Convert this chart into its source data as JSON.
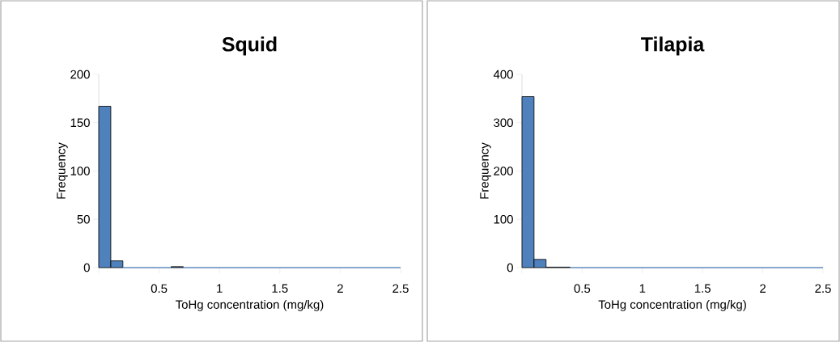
{
  "chart_data": [
    {
      "type": "histogram",
      "title": "Squid",
      "xlabel": "ToHg concentration (mg/kg)",
      "ylabel": "Frequency",
      "bins": [
        0,
        0.1,
        0.2,
        0.3,
        0.4,
        0.5,
        0.6,
        0.7,
        0.8,
        0.9,
        1,
        1.1,
        1.2,
        1.3,
        1.4,
        1.5,
        1.6,
        1.7,
        1.8,
        1.9,
        2,
        2.1,
        2.2,
        2.3,
        2.4,
        2.5
      ],
      "values": [
        167,
        7,
        0,
        0,
        0,
        0,
        1,
        0,
        0,
        0,
        0,
        0,
        0,
        0,
        0,
        0,
        0,
        0,
        0,
        0,
        0,
        0,
        0,
        0,
        0
      ],
      "color": "#4f81bd",
      "xlim": [
        0,
        2.5
      ],
      "ylim": [
        0,
        200
      ],
      "xticks": [
        {
          "value": 0,
          "label": null
        },
        0.5,
        1,
        1.5,
        2,
        2.5
      ],
      "yticks": [
        0,
        50,
        100,
        150,
        200
      ],
      "grid": false
    },
    {
      "type": "histogram",
      "title": "Tilapia",
      "xlabel": "ToHg concentration (mg/kg)",
      "ylabel": "Frequency",
      "bins": [
        0,
        0.1,
        0.2,
        0.3,
        0.4,
        0.5,
        0.6,
        0.7,
        0.8,
        0.9,
        1,
        1.1,
        1.2,
        1.3,
        1.4,
        1.5,
        1.6,
        1.7,
        1.8,
        1.9,
        2,
        2.1,
        2.2,
        2.3,
        2.4,
        2.5
      ],
      "values": [
        354,
        17,
        1,
        1,
        0,
        0,
        0,
        0,
        0,
        0,
        0,
        0,
        0,
        0,
        0,
        0,
        0,
        0,
        0,
        0,
        0,
        0,
        0,
        0,
        0
      ],
      "color": "#4f81bd",
      "xlim": [
        0,
        2.5
      ],
      "ylim": [
        0,
        400
      ],
      "xticks": [
        {
          "value": 0,
          "label": null
        },
        0.5,
        1,
        1.5,
        2,
        2.5
      ],
      "yticks": [
        0,
        100,
        200,
        300,
        400
      ],
      "grid": false
    }
  ]
}
